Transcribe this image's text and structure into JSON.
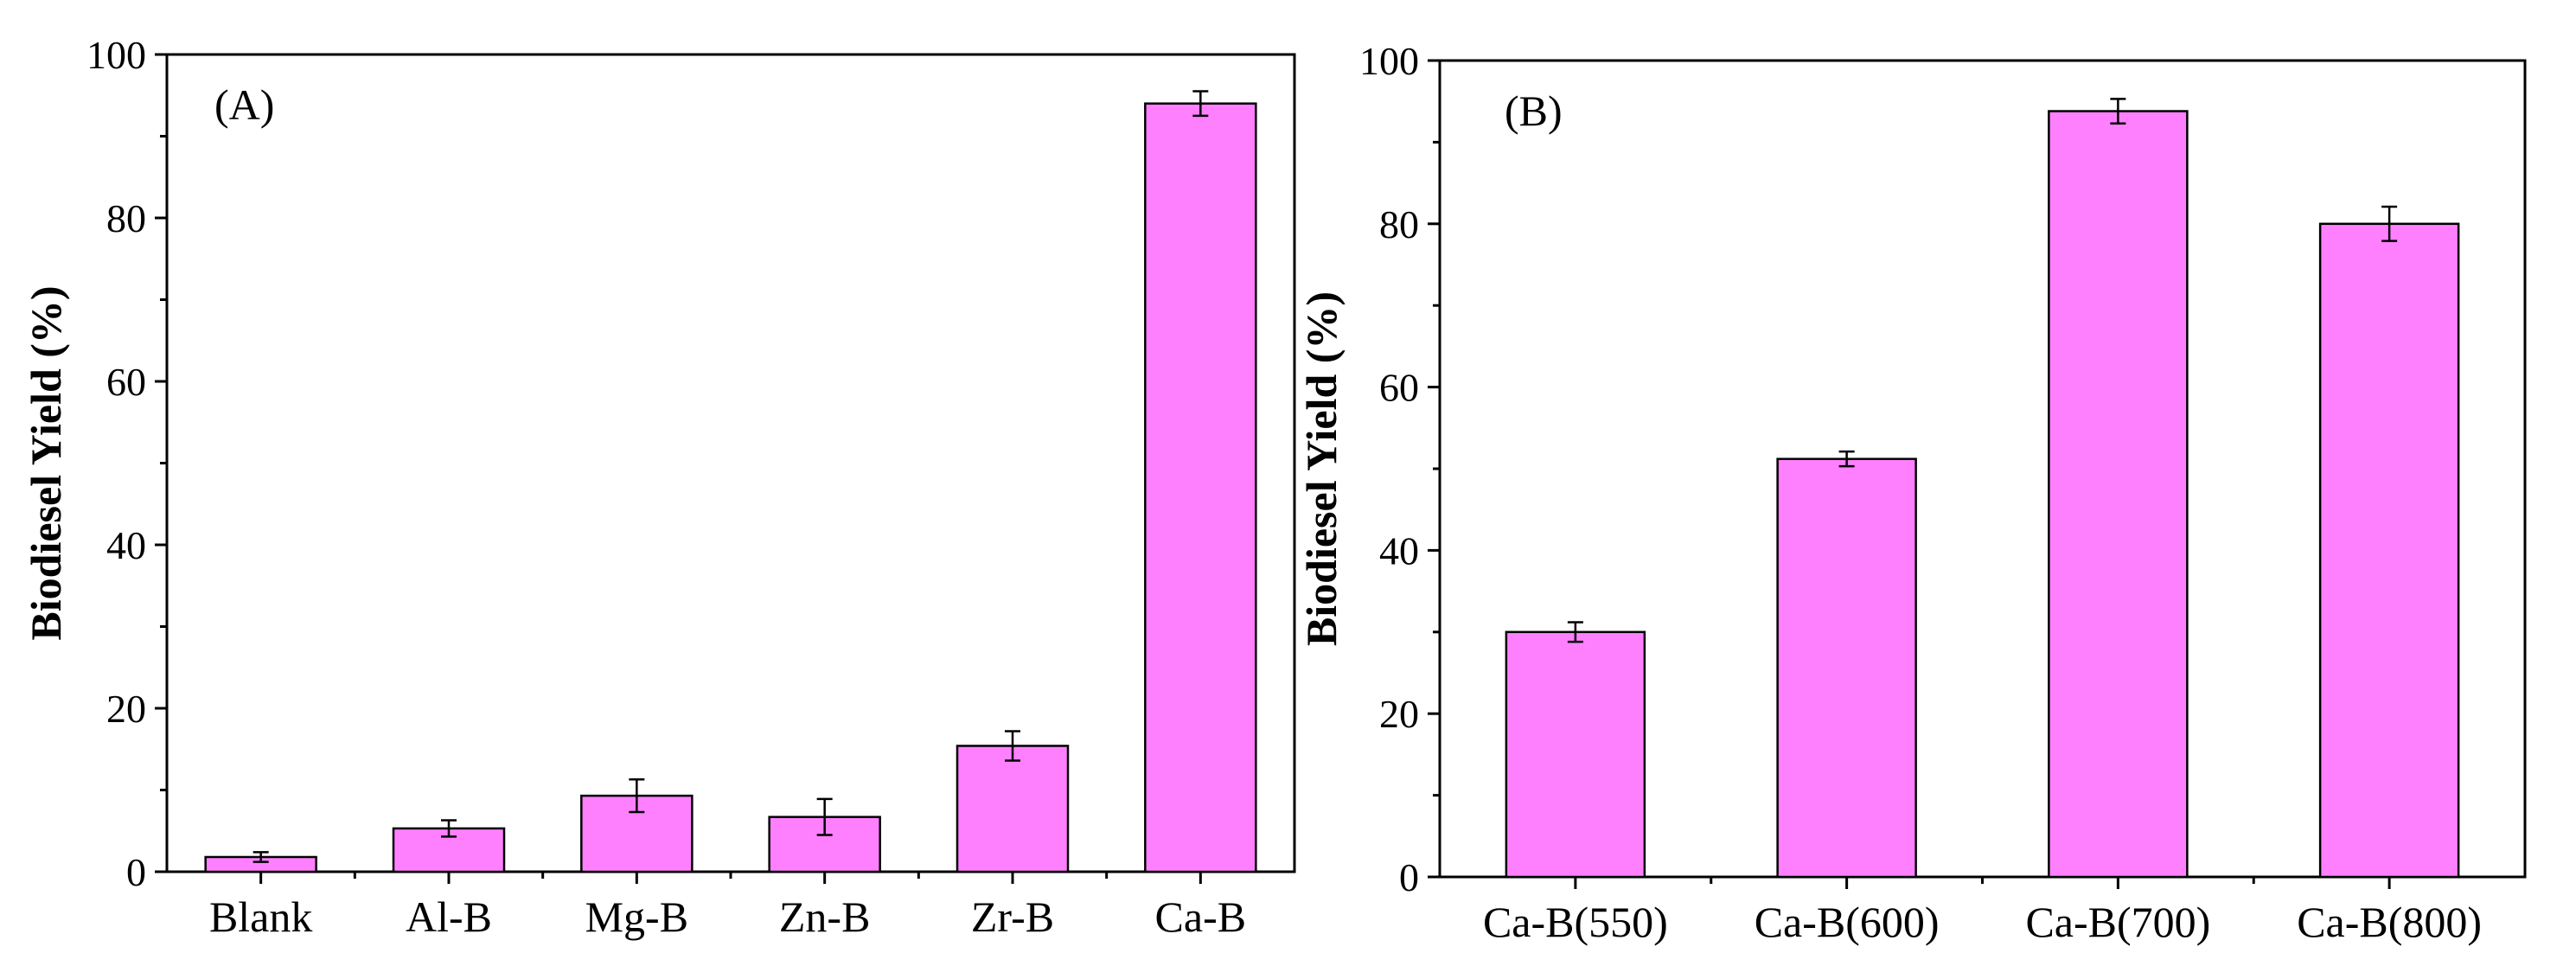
{
  "chart_data": [
    {
      "type": "bar",
      "panel_label": "(A)",
      "title": "",
      "xlabel": "",
      "ylabel": "Biodiesel Yield (%)",
      "categories": [
        "Blank",
        "Al-B",
        "Mg-B",
        "Zn-B",
        "Zr-B",
        "Ca-B"
      ],
      "values": [
        1.8,
        5.3,
        9.3,
        6.7,
        15.4,
        94.0
      ],
      "errors": [
        0.6,
        1.0,
        2.0,
        2.2,
        1.8,
        1.5
      ],
      "ylim": [
        0,
        100
      ],
      "yticks": [
        0,
        20,
        40,
        60,
        80,
        100
      ],
      "ytick_labels": [
        "0",
        "20",
        "40",
        "60",
        "80",
        "100"
      ],
      "bar_color": "#ff80ff",
      "grid": false
    },
    {
      "type": "bar",
      "panel_label": "(B)",
      "title": "",
      "xlabel": "",
      "ylabel": "Biodiesel Yield (%)",
      "categories": [
        "Ca-B(550)",
        "Ca-B(600)",
        "Ca-B(700)",
        "Ca-B(800)"
      ],
      "values": [
        30.0,
        51.2,
        93.8,
        80.0
      ],
      "errors": [
        1.2,
        0.9,
        1.5,
        2.1
      ],
      "ylim": [
        0,
        100
      ],
      "yticks": [
        0,
        20,
        40,
        60,
        80,
        100
      ],
      "ytick_labels": [
        "0",
        "20",
        "40",
        "60",
        "80",
        "100"
      ],
      "bar_color": "#ff80ff",
      "grid": false
    }
  ]
}
